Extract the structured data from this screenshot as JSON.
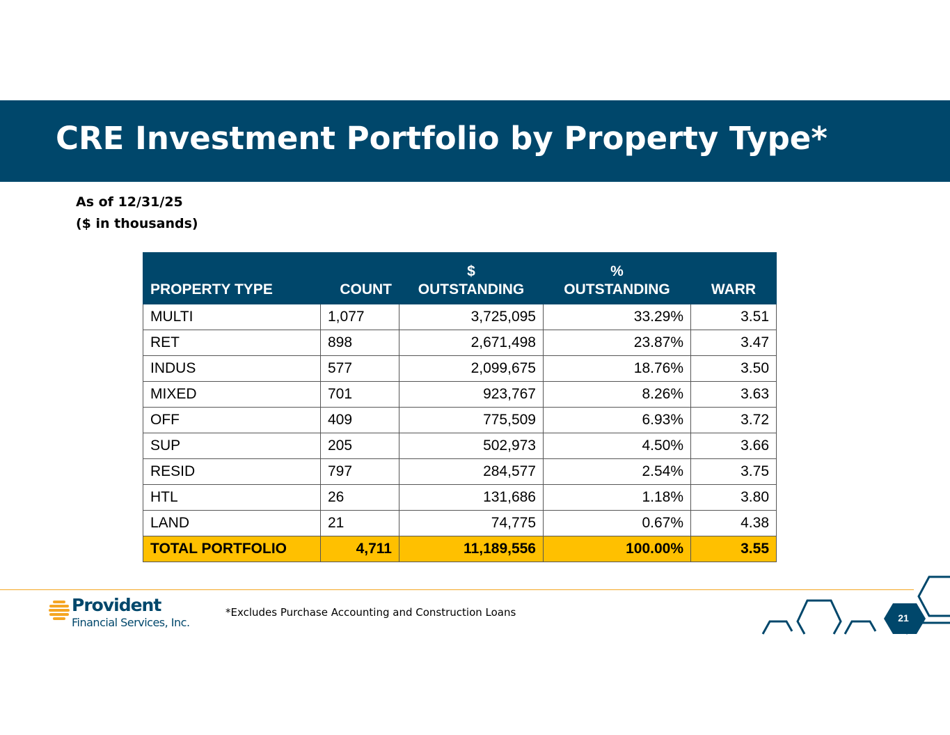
{
  "slide": {
    "title": "CRE Investment Portfolio by Property Type*",
    "as_of": "As of 12/31/25",
    "units": "($ in thousands)",
    "footnote": "*Excludes Purchase Accounting and Construction Loans",
    "page_number": "21"
  },
  "table": {
    "headers": {
      "property_type": "PROPERTY TYPE",
      "count": "COUNT",
      "outstanding_l1": "$",
      "outstanding_l2": "OUTSTANDING",
      "pct_l1": "%",
      "pct_l2": "OUTSTANDING",
      "warr": "WARR"
    },
    "rows": [
      {
        "type": "MULTI",
        "count": "1,077",
        "outstanding": "3,725,095",
        "pct": "33.29%",
        "warr": "3.51"
      },
      {
        "type": "RET",
        "count": "898",
        "outstanding": "2,671,498",
        "pct": "23.87%",
        "warr": "3.47"
      },
      {
        "type": "INDUS",
        "count": "577",
        "outstanding": "2,099,675",
        "pct": "18.76%",
        "warr": "3.50"
      },
      {
        "type": "MIXED",
        "count": "701",
        "outstanding": "923,767",
        "pct": "8.26%",
        "warr": "3.63"
      },
      {
        "type": "OFF",
        "count": "409",
        "outstanding": "775,509",
        "pct": "6.93%",
        "warr": "3.72"
      },
      {
        "type": "SUP",
        "count": "205",
        "outstanding": "502,973",
        "pct": "4.50%",
        "warr": "3.66"
      },
      {
        "type": "RESID",
        "count": "797",
        "outstanding": "284,577",
        "pct": "2.54%",
        "warr": "3.75"
      },
      {
        "type": "HTL",
        "count": "26",
        "outstanding": "131,686",
        "pct": "1.18%",
        "warr": "3.80"
      },
      {
        "type": "LAND",
        "count": "21",
        "outstanding": "74,775",
        "pct": "0.67%",
        "warr": "4.38"
      }
    ],
    "total": {
      "type": "TOTAL PORTFOLIO",
      "count": "4,711",
      "outstanding": "11,189,556",
      "pct": "100.00%",
      "warr": "3.55"
    }
  },
  "logo": {
    "name": "Provident",
    "subtitle": "Financial Services, Inc."
  },
  "colors": {
    "brand_navy": "#00476b",
    "total_highlight": "#ffc000",
    "divider_orange": "#f5a623",
    "logo_gold": "#f5a623"
  }
}
